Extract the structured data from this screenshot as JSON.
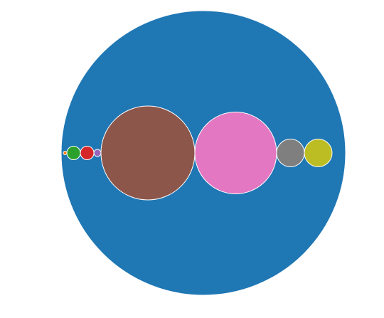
{
  "chart_data": {
    "type": "packed-circles",
    "container": {
      "color": "#1f77b4"
    },
    "circles": [
      {
        "name": "orange",
        "color": "#ff7f0e",
        "relative_radius": 0.0125
      },
      {
        "name": "green",
        "color": "#2ca02c",
        "relative_radius": 0.0475
      },
      {
        "name": "red",
        "color": "#d62728",
        "relative_radius": 0.0475
      },
      {
        "name": "purple",
        "color": "#9467bd",
        "relative_radius": 0.025
      },
      {
        "name": "brown",
        "color": "#8c564b",
        "relative_radius": 0.33
      },
      {
        "name": "pink",
        "color": "#e377c2",
        "relative_radius": 0.2875
      },
      {
        "name": "gray",
        "color": "#7f7f7f",
        "relative_radius": 0.0975
      },
      {
        "name": "olive",
        "color": "#bcbd22",
        "relative_radius": 0.0975
      }
    ],
    "stroke_color": "#ffffff"
  }
}
